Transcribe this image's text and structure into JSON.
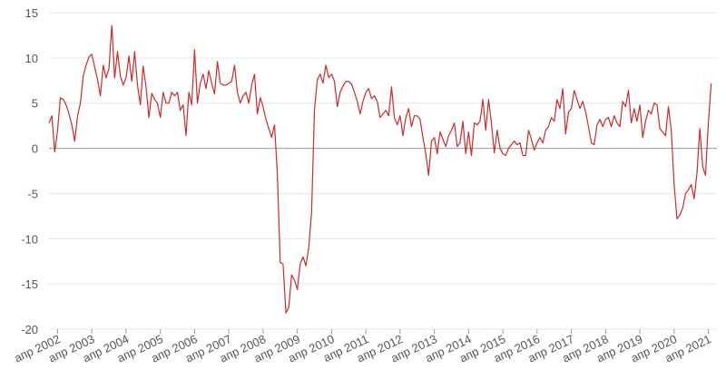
{
  "chart_data": {
    "type": "line",
    "title": "",
    "xlabel": "",
    "ylabel": "",
    "ylim": [
      -20,
      15
    ],
    "y_ticks": [
      -20,
      -15,
      -10,
      -5,
      0,
      5,
      10,
      15
    ],
    "x_tick_labels": [
      "апр 2002",
      "апр 2003",
      "апр 2004",
      "апр 2005",
      "апр 2006",
      "апр 2007",
      "апр 2008",
      "апр 2009",
      "апр 2010",
      "апр 2011",
      "апр 2012",
      "апр 2013",
      "апр 2014",
      "апр 2015",
      "апр 2016",
      "апр 2017",
      "апр 2018",
      "апр 2019",
      "апр 2020",
      "апр 2021"
    ],
    "grid": true,
    "legend": "none",
    "line_color": "#cc2b2b",
    "series": [
      {
        "start": "2002-01",
        "frequency": "monthly",
        "values": [
          2.8,
          3.6,
          -0.4,
          2.0,
          5.6,
          5.4,
          4.8,
          3.8,
          2.6,
          0.8,
          3.6,
          5.0,
          8.0,
          9.2,
          10.1,
          10.4,
          9.0,
          7.6,
          5.8,
          9.2,
          7.8,
          8.8,
          13.6,
          7.8,
          10.7,
          8.0,
          7.0,
          7.8,
          10.2,
          7.4,
          10.7,
          7.0,
          4.8,
          9.1,
          6.8,
          3.4,
          6.1,
          5.4,
          5.0,
          3.4,
          6.2,
          5.0,
          5.0,
          6.2,
          5.8,
          6.2,
          4.2,
          4.8,
          1.4,
          6.2,
          4.8,
          10.9,
          5.0,
          7.2,
          8.2,
          6.6,
          8.6,
          7.2,
          6.0,
          9.6,
          7.2,
          7.0,
          7.0,
          7.2,
          7.4,
          9.2,
          6.2,
          5.0,
          5.8,
          6.2,
          5.0,
          7.0,
          8.2,
          3.8,
          5.6,
          4.6,
          3.2,
          2.2,
          1.2,
          2.6,
          -2.8,
          -12.6,
          -12.8,
          -18.2,
          -17.6,
          -14.0,
          -14.6,
          -15.6,
          -12.8,
          -12.0,
          -13.0,
          -11.0,
          -7.0,
          4.2,
          7.6,
          8.2,
          7.2,
          9.2,
          7.8,
          8.2,
          7.4,
          4.6,
          6.2,
          6.9,
          7.4,
          7.4,
          7.1,
          6.2,
          5.2,
          3.8,
          5.2,
          6.2,
          6.6,
          5.5,
          5.8,
          5.2,
          3.4,
          3.8,
          4.2,
          3.6,
          6.8,
          3.4,
          2.6,
          3.6,
          1.4,
          3.4,
          4.4,
          2.4,
          3.6,
          3.6,
          3.2,
          1.2,
          -0.6,
          -3.0,
          0.8,
          1.2,
          -0.6,
          1.8,
          1.0,
          0.2,
          1.4,
          2.0,
          2.8,
          0.2,
          0.6,
          3.0,
          -0.6,
          1.8,
          -0.8,
          2.8,
          2.6,
          3.0,
          5.4,
          2.0,
          5.4,
          2.8,
          -0.5,
          2.0,
          0.0,
          -0.6,
          -0.8,
          0.0,
          0.4,
          0.8,
          0.4,
          0.6,
          -0.8,
          -0.8,
          2.0,
          1.0,
          -0.2,
          0.6,
          1.2,
          0.6,
          2.0,
          2.4,
          3.4,
          3.0,
          5.4,
          4.4,
          6.6,
          1.6,
          4.0,
          4.4,
          6.4,
          5.4,
          4.4,
          5.2,
          4.0,
          2.4,
          0.6,
          0.4,
          2.6,
          3.2,
          2.4,
          3.2,
          3.4,
          2.4,
          3.6,
          2.8,
          2.4,
          5.2,
          4.6,
          6.4,
          2.8,
          4.4,
          3.0,
          4.8,
          1.2,
          3.0,
          4.2,
          3.8,
          5.0,
          4.8,
          2.2,
          1.8,
          1.4,
          4.6,
          2.0,
          -4.0,
          -7.8,
          -7.4,
          -6.6,
          -5.0,
          -4.6,
          -4.0,
          -5.6,
          -2.8,
          2.2,
          -2.0,
          -3.0,
          2.8,
          7.2
        ]
      }
    ]
  }
}
